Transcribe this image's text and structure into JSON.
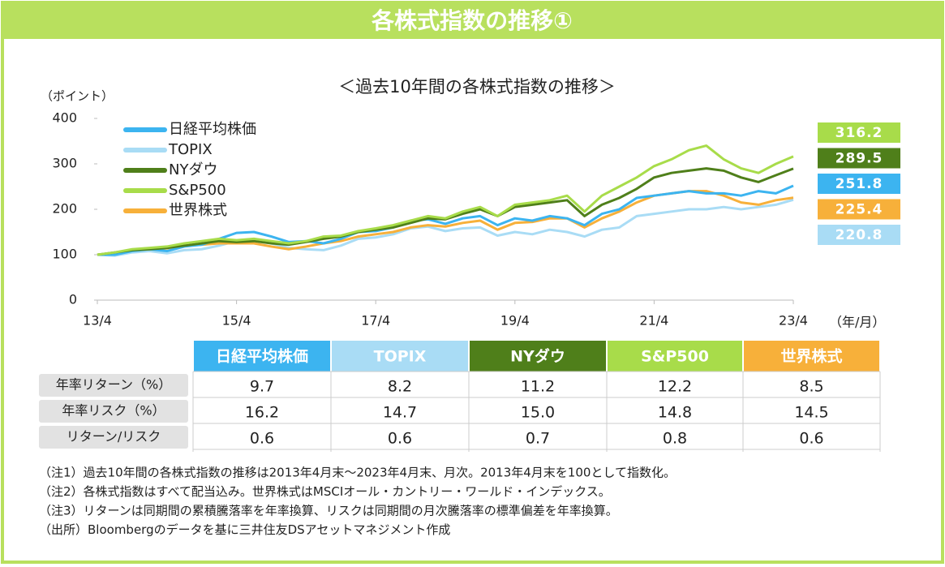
{
  "header": {
    "title": "各株式指数の推移①"
  },
  "chart_data": {
    "type": "line",
    "title": "＜過去10年間の各株式指数の推移＞",
    "y_label": "（ポイント）",
    "x_label": "（年/月）",
    "categories": [
      "13/4",
      null,
      null,
      null,
      null,
      null,
      null,
      null,
      "15/4",
      null,
      null,
      null,
      null,
      null,
      null,
      null,
      "17/4",
      null,
      null,
      null,
      null,
      null,
      null,
      null,
      "19/4",
      null,
      null,
      null,
      null,
      null,
      null,
      null,
      "21/4",
      null,
      null,
      null,
      null,
      null,
      null,
      null,
      "23/4"
    ],
    "series": [
      {
        "name": "日経平均株価",
        "color": "#3cb4f0",
        "values": [
          100,
          100,
          108,
          112,
          108,
          118,
          122,
          135,
          148,
          150,
          140,
          128,
          130,
          125,
          135,
          150,
          152,
          160,
          175,
          178,
          168,
          180,
          185,
          165,
          180,
          175,
          185,
          180,
          165,
          190,
          200,
          225,
          230,
          235,
          240,
          235,
          235,
          230,
          240,
          235,
          251.8
        ]
      },
      {
        "name": "TOPIX",
        "color": "#a9dcf5",
        "values": [
          100,
          98,
          105,
          108,
          103,
          110,
          112,
          120,
          130,
          132,
          125,
          115,
          112,
          110,
          120,
          135,
          138,
          145,
          158,
          162,
          152,
          158,
          160,
          142,
          150,
          145,
          155,
          150,
          140,
          155,
          160,
          185,
          190,
          195,
          200,
          200,
          205,
          200,
          205,
          210,
          220.8
        ]
      },
      {
        "name": "NYダウ",
        "color": "#4f7f1a",
        "values": [
          100,
          105,
          110,
          112,
          115,
          120,
          125,
          130,
          128,
          130,
          125,
          122,
          128,
          135,
          140,
          150,
          155,
          160,
          170,
          180,
          178,
          190,
          200,
          185,
          205,
          210,
          215,
          220,
          185,
          210,
          225,
          245,
          270,
          280,
          285,
          290,
          285,
          270,
          260,
          275,
          289.5
        ]
      },
      {
        "name": "S&P500",
        "color": "#a8dc4a",
        "values": [
          100,
          105,
          112,
          115,
          118,
          125,
          130,
          135,
          132,
          135,
          130,
          125,
          130,
          140,
          142,
          152,
          158,
          165,
          175,
          185,
          180,
          195,
          205,
          185,
          210,
          215,
          220,
          230,
          195,
          230,
          250,
          270,
          295,
          310,
          330,
          340,
          310,
          290,
          280,
          300,
          316.2
        ]
      },
      {
        "name": "世界株式",
        "color": "#f7b03a",
        "values": [
          100,
          103,
          110,
          112,
          114,
          120,
          122,
          125,
          125,
          125,
          118,
          112,
          118,
          125,
          130,
          140,
          145,
          150,
          160,
          165,
          162,
          170,
          175,
          155,
          170,
          172,
          180,
          180,
          160,
          180,
          195,
          215,
          230,
          235,
          240,
          240,
          230,
          215,
          210,
          220,
          225.4
        ]
      }
    ],
    "ylim": [
      0,
      400
    ],
    "yticks": [
      0,
      100,
      200,
      300,
      400
    ],
    "legend": "upper left"
  },
  "table": {
    "columns": [
      "日経平均株価",
      "TOPIX",
      "NYダウ",
      "S&P500",
      "世界株式"
    ],
    "rows": [
      {
        "label": "年率リターン（%）",
        "values": [
          "9.7",
          "8.2",
          "11.2",
          "12.2",
          "8.5"
        ]
      },
      {
        "label": "年率リスク（%）",
        "values": [
          "16.2",
          "14.7",
          "15.0",
          "14.8",
          "14.5"
        ]
      },
      {
        "label": "リターン/リスク",
        "values": [
          "0.6",
          "0.6",
          "0.7",
          "0.8",
          "0.6"
        ]
      }
    ]
  },
  "notes": [
    "（注1）過去10年間の各株式指数の推移は2013年4月末～2023年4月末、月次。2013年4月末を100として指数化。",
    "（注2）各株式指数はすべて配当込み。世界株式はMSCIオール・カントリー・ワールド・インデックス。",
    "（注3）リターンは同期間の累積騰落率を年率換算、リスクは同期間の月次騰落率の標準偏差を年率換算。",
    "（出所）Bloombergのデータを基に三井住友DSアセットマネジメント作成"
  ]
}
